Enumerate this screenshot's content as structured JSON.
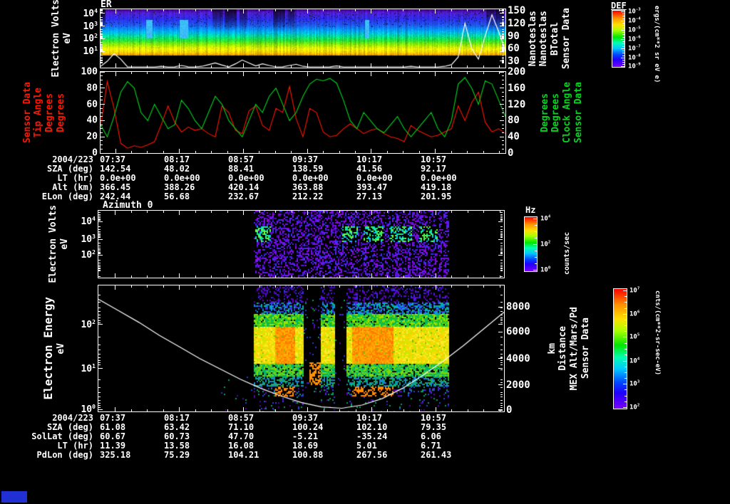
{
  "titles": {
    "er": "ER",
    "az": "Azimuth 0"
  },
  "colors": {
    "line_red": "#ff1500",
    "line_green": "#00d81e",
    "line_white": "#ffffff",
    "swatch_blue": "#2030d4"
  },
  "labels": {
    "er_left": [
      "Electron Volts",
      "eV"
    ],
    "er_right": [
      "Nanoteslas",
      "Nanoteslas",
      "BTotal",
      "Sensor Data"
    ],
    "ang_left": [
      "Sensor Data",
      "Tip Angle",
      "Degrees",
      "Degrees"
    ],
    "ang_right": [
      "Degrees",
      "Degrees",
      "Clock Angle",
      "Sensor Data"
    ],
    "az_left": [
      "Electron Volts",
      "eV"
    ],
    "els_left": [
      "Electron Energy",
      "eV"
    ],
    "els_right": [
      "km",
      "Distance",
      "MEX Alt/Mars/Pd",
      "Sensor Data"
    ]
  },
  "axes": {
    "er": {
      "left": [
        [
          "10^4",
          0.07
        ],
        [
          "10^3",
          0.29
        ],
        [
          "10^2",
          0.5
        ],
        [
          "10^1",
          0.72
        ]
      ],
      "left_log": true,
      "right": [
        [
          "150",
          0.02
        ],
        [
          "120",
          0.24
        ],
        [
          "90",
          0.46
        ],
        [
          "60",
          0.67
        ],
        [
          "30",
          0.89
        ]
      ],
      "x": [
        0.037,
        0.195,
        0.353,
        0.511,
        0.668,
        0.826
      ]
    },
    "angles": {
      "left": [
        [
          "100",
          0.0
        ],
        [
          "80",
          0.2
        ],
        [
          "60",
          0.4
        ],
        [
          "40",
          0.6
        ],
        [
          "20",
          0.8
        ],
        [
          "0",
          1.0
        ]
      ],
      "right": [
        [
          "200",
          0.0
        ],
        [
          "160",
          0.2
        ],
        [
          "120",
          0.4
        ],
        [
          "80",
          0.6
        ],
        [
          "40",
          0.8
        ],
        [
          "0",
          1.0
        ]
      ],
      "x": [
        0.037,
        0.195,
        0.353,
        0.511,
        0.668,
        0.826
      ]
    },
    "az": {
      "left": [
        [
          "10^4",
          0.16
        ],
        [
          "10^3",
          0.43
        ],
        [
          "10^2",
          0.66
        ]
      ],
      "left_log": true,
      "x": [
        0.042,
        0.2,
        0.358,
        0.515,
        0.673,
        0.831
      ]
    },
    "els": {
      "left": [
        [
          "10^2",
          0.31
        ],
        [
          "10^1",
          0.66
        ],
        [
          "10^0",
          0.985
        ]
      ],
      "left_log": true,
      "right": [
        [
          "8000",
          0.17
        ],
        [
          "6000",
          0.37
        ],
        [
          "4000",
          0.58
        ],
        [
          "2000",
          0.79
        ],
        [
          "0",
          0.99
        ]
      ],
      "x": [
        0.042,
        0.2,
        0.358,
        0.515,
        0.673,
        0.831
      ]
    }
  },
  "colorbars": {
    "def": {
      "title": "DEF",
      "unit": "ergs/(cm**2 sr eV e)",
      "ticks": [
        [
          "10^-3",
          0.01
        ],
        [
          "10^-4",
          0.175
        ],
        [
          "10^-5",
          0.34
        ],
        [
          "10^-6",
          0.505
        ],
        [
          "10^-7",
          0.67
        ],
        [
          "10^-8",
          0.835
        ],
        [
          "10^-9",
          0.99
        ]
      ]
    },
    "hz": {
      "title": "Hz",
      "unit": "counts/sec",
      "ticks": [
        [
          "10^4",
          0.02
        ],
        [
          "10^2",
          0.5
        ],
        [
          "10^0",
          0.97
        ]
      ]
    },
    "cnts": {
      "title": "",
      "unit": "cnts/(cm**2-sr-sec-eV)",
      "ticks": [
        [
          "10^7",
          0.01
        ],
        [
          "10^6",
          0.21
        ],
        [
          "10^5",
          0.4
        ],
        [
          "10^4",
          0.6
        ],
        [
          "10^3",
          0.79
        ],
        [
          "10^2",
          0.99
        ]
      ]
    }
  },
  "tables": [
    {
      "date_label": "2004/223",
      "times": [
        "07:37",
        "08:17",
        "08:57",
        "09:37",
        "10:17",
        "10:57"
      ],
      "rows": [
        {
          "label": "SZA (deg)",
          "values": [
            "142.54",
            "48.02",
            "88.41",
            "138.59",
            "41.56",
            "92.17"
          ]
        },
        {
          "label": "LT (hr)",
          "values": [
            "0.0e+00",
            "0.0e+00",
            "0.0e+00",
            "0.0e+00",
            "0.0e+00",
            "0.0e+00"
          ]
        },
        {
          "label": "Alt (km)",
          "values": [
            "366.45",
            "388.26",
            "420.14",
            "363.88",
            "393.47",
            "419.18"
          ]
        },
        {
          "label": "ELon (deg)",
          "values": [
            "242.44",
            "56.68",
            "232.67",
            "212.22",
            "27.13",
            "201.95"
          ]
        }
      ]
    },
    {
      "date_label": "2004/223",
      "times": [
        "07:37",
        "08:17",
        "08:57",
        "09:37",
        "10:17",
        "10:57"
      ],
      "rows": [
        {
          "label": "SZA (deg)",
          "values": [
            "61.08",
            "63.42",
            "71.10",
            "100.24",
            "102.10",
            "79.35"
          ]
        },
        {
          "label": "SolLat (deg)",
          "values": [
            "60.67",
            "60.73",
            "47.70",
            "-5.21",
            "-35.24",
            "6.06"
          ]
        },
        {
          "label": "LT (hr)",
          "values": [
            "11.39",
            "13.58",
            "16.08",
            "18.69",
            "5.01",
            "6.71"
          ]
        },
        {
          "label": "PdLon (deg)",
          "values": [
            "325.18",
            "75.29",
            "104.21",
            "100.88",
            "267.56",
            "261.43"
          ]
        }
      ]
    }
  ],
  "chart_data": [
    {
      "type": "heatmap",
      "title": "ER",
      "x_range": [
        "07:37",
        "10:57"
      ],
      "y_axis": "Electron Volts eV",
      "y_range_log": [
        "10^1",
        "10^4"
      ],
      "colorbar_title": "DEF",
      "value_unit": "ergs/(cm**2 sr eV e)",
      "value_range_log": [
        "10^-9",
        "10^-3"
      ],
      "overlay_line": {
        "name": "BTotal",
        "unit": "Nanoteslas",
        "axis_side": "right",
        "axis_ticks": [
          30,
          60,
          90,
          120,
          150
        ],
        "values": [
          18,
          30,
          48,
          35,
          14,
          9,
          11,
          13,
          16,
          18,
          15,
          17,
          20,
          17,
          14,
          18,
          22,
          26,
          21,
          16,
          24,
          33,
          26,
          19,
          24,
          20,
          15,
          17,
          20,
          23,
          18,
          16,
          14,
          15,
          17,
          19,
          16,
          14,
          12,
          14,
          16,
          15,
          13,
          12,
          14,
          16,
          18,
          15,
          13,
          12,
          14,
          18,
          22,
          40,
          120,
          60,
          35,
          90,
          140,
          100,
          55
        ]
      }
    },
    {
      "type": "line",
      "x_range": [
        "07:37",
        "10:57"
      ],
      "series": [
        {
          "name": "Tip Angle",
          "unit": "Degrees",
          "color": "#ff1500",
          "ylim": [
            0,
            100
          ],
          "values": [
            32,
            88,
            55,
            12,
            6,
            9,
            7,
            10,
            14,
            35,
            58,
            38,
            26,
            32,
            28,
            30,
            24,
            20,
            58,
            50,
            28,
            24,
            52,
            58,
            34,
            28,
            55,
            50,
            82,
            42,
            20,
            55,
            50,
            26,
            20,
            22,
            30,
            36,
            30,
            24,
            28,
            30,
            24,
            20,
            18,
            14,
            34,
            28,
            24,
            20,
            22,
            26,
            30,
            58,
            40,
            62,
            75,
            38,
            26,
            30,
            24
          ]
        },
        {
          "name": "Clock Angle",
          "unit": "Degrees",
          "color": "#00d81e",
          "ylim": [
            0,
            200
          ],
          "values": [
            70,
            40,
            90,
            150,
            176,
            160,
            100,
            80,
            120,
            90,
            60,
            70,
            130,
            110,
            80,
            60,
            100,
            140,
            120,
            80,
            60,
            40,
            80,
            120,
            100,
            140,
            160,
            120,
            80,
            100,
            140,
            170,
            182,
            178,
            184,
            172,
            130,
            80,
            60,
            100,
            80,
            60,
            50,
            70,
            90,
            60,
            40,
            60,
            80,
            100,
            60,
            40,
            80,
            170,
            186,
            160,
            120,
            178,
            170,
            130,
            90
          ]
        }
      ]
    },
    {
      "type": "heatmap",
      "title": "Azimuth 0",
      "y_axis": "Electron Volts eV",
      "y_range_log": [
        "10^2",
        "10^4"
      ],
      "colorbar_title": "Hz",
      "value_unit": "counts/sec",
      "value_range_log": [
        "10^0",
        "10^4"
      ],
      "active_x": [
        0.382,
        0.863
      ]
    },
    {
      "type": "heatmap",
      "y_axis": "Electron Energy eV",
      "y_range_log": [
        "10^0",
        "10^3"
      ],
      "value_unit": "cnts/(cm**2-sr-sec-eV)",
      "value_range_log": [
        "10^2",
        "10^7"
      ],
      "active_x": [
        0.382,
        0.863
      ],
      "gaps_x": [
        [
          0.504,
          0.548
        ],
        [
          0.58,
          0.611
        ]
      ],
      "overlay_line": {
        "name": "MEX Alt/Mars/Pd Distance",
        "unit": "km",
        "axis_side": "right",
        "axis_ticks": [
          0,
          2000,
          4000,
          6000,
          8000
        ],
        "values": [
          8600,
          7700,
          6800,
          5800,
          4900,
          4000,
          3200,
          2400,
          1700,
          1100,
          600,
          250,
          150,
          400,
          900,
          1700,
          2700,
          3800,
          5000,
          6300,
          7600
        ]
      }
    }
  ]
}
